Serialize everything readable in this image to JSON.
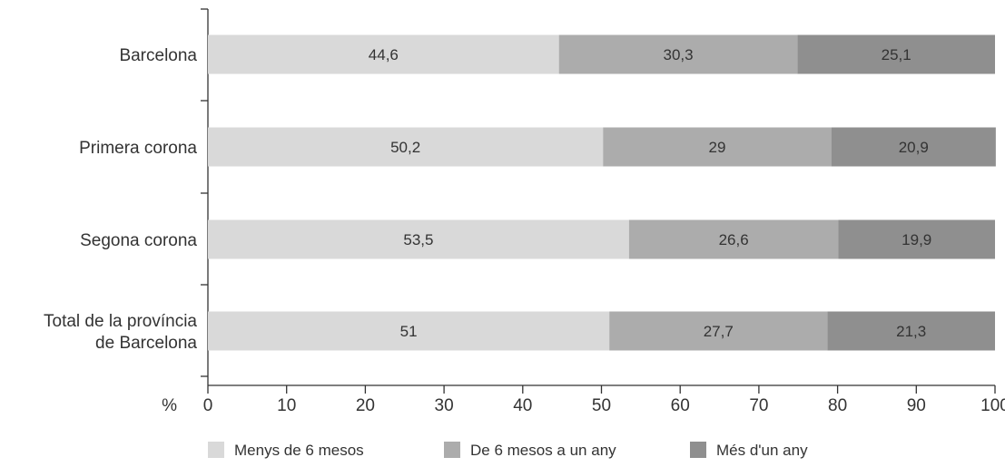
{
  "chart_data": {
    "type": "bar",
    "orientation": "horizontal",
    "stacked": true,
    "categories": [
      [
        "Barcelona"
      ],
      [
        "Primera corona"
      ],
      [
        "Segona corona"
      ],
      [
        "Total de la província",
        "de Barcelona"
      ]
    ],
    "series": [
      {
        "name": "Menys de 6 mesos",
        "color": "#d9d9d9",
        "values": [
          44.6,
          50.2,
          53.5,
          51
        ]
      },
      {
        "name": "De 6 mesos a un any",
        "color": "#acacac",
        "values": [
          30.3,
          29,
          26.6,
          27.7
        ]
      },
      {
        "name": "Més d'un any",
        "color": "#8f8f8f",
        "values": [
          25.1,
          20.9,
          19.9,
          21.3
        ]
      }
    ],
    "data_labels": [
      [
        "44,6",
        "50,2",
        "53,5",
        "51"
      ],
      [
        "30,3",
        "29",
        "26,6",
        "27,7"
      ],
      [
        "25,1",
        "20,9",
        "19,9",
        "21,3"
      ]
    ],
    "xlabel": "%",
    "xlim": [
      0,
      100
    ],
    "xticks": [
      0,
      10,
      20,
      30,
      40,
      50,
      60,
      70,
      80,
      90,
      100
    ],
    "grid": false,
    "legend_position": "bottom"
  }
}
